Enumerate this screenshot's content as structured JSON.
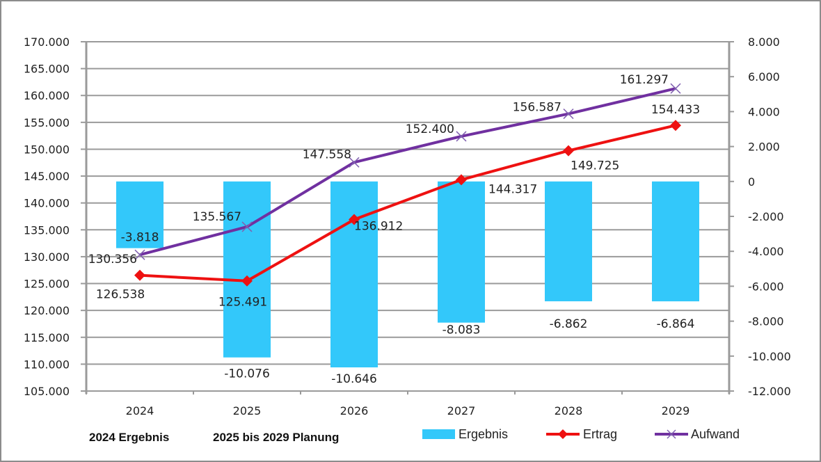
{
  "chart_data": {
    "type": "bar+line",
    "categories": [
      "2024",
      "2025",
      "2026",
      "2027",
      "2028",
      "2029"
    ],
    "series": [
      {
        "name": "Ergebnis",
        "type": "bar",
        "axis": "right",
        "color": "#33c8fa",
        "values": [
          -3818,
          -10076,
          -10646,
          -8083,
          -6862,
          -6864
        ],
        "labels": [
          "-3.818",
          "-10.076",
          "-10.646",
          "-8.083",
          "-6.862",
          "-6.864"
        ]
      },
      {
        "name": "Ertrag",
        "type": "line",
        "axis": "left",
        "color": "#ee1111",
        "marker": "diamond",
        "values": [
          126538,
          125491,
          136912,
          144317,
          149725,
          154433
        ],
        "labels": [
          "126.538",
          "125.491",
          "136.912",
          "144.317",
          "149.725",
          "154.433"
        ]
      },
      {
        "name": "Aufwand",
        "type": "line",
        "axis": "left",
        "color": "#7030a0",
        "marker": "x",
        "values": [
          130356,
          135567,
          147558,
          152400,
          156587,
          161297
        ],
        "labels": [
          "130.356",
          "135.567",
          "147.558",
          "152.400",
          "156.587",
          "161.297"
        ]
      }
    ],
    "y_left": {
      "range": [
        105000,
        170000
      ],
      "step": 5000,
      "ticks": [
        "170.000",
        "165.000",
        "160.000",
        "155.000",
        "150.000",
        "145.000",
        "140.000",
        "135.000",
        "130.000",
        "125.000",
        "120.000",
        "115.000",
        "110.000",
        "105.000"
      ]
    },
    "y_right": {
      "range": [
        -12000,
        8000
      ],
      "step": 2000,
      "ticks": [
        "8.000",
        "6.000",
        "4.000",
        "2.000",
        "0",
        "-2.000",
        "-4.000",
        "-6.000",
        "-8.000",
        "-10.000",
        "-12.000"
      ]
    },
    "grid": true,
    "legend": {
      "placement": "bottom-right",
      "entries": [
        "Ergebnis",
        "Ertrag",
        "Aufwand"
      ]
    },
    "notes": [
      "2024 Ergebnis",
      "2025 bis 2029 Planung"
    ]
  }
}
